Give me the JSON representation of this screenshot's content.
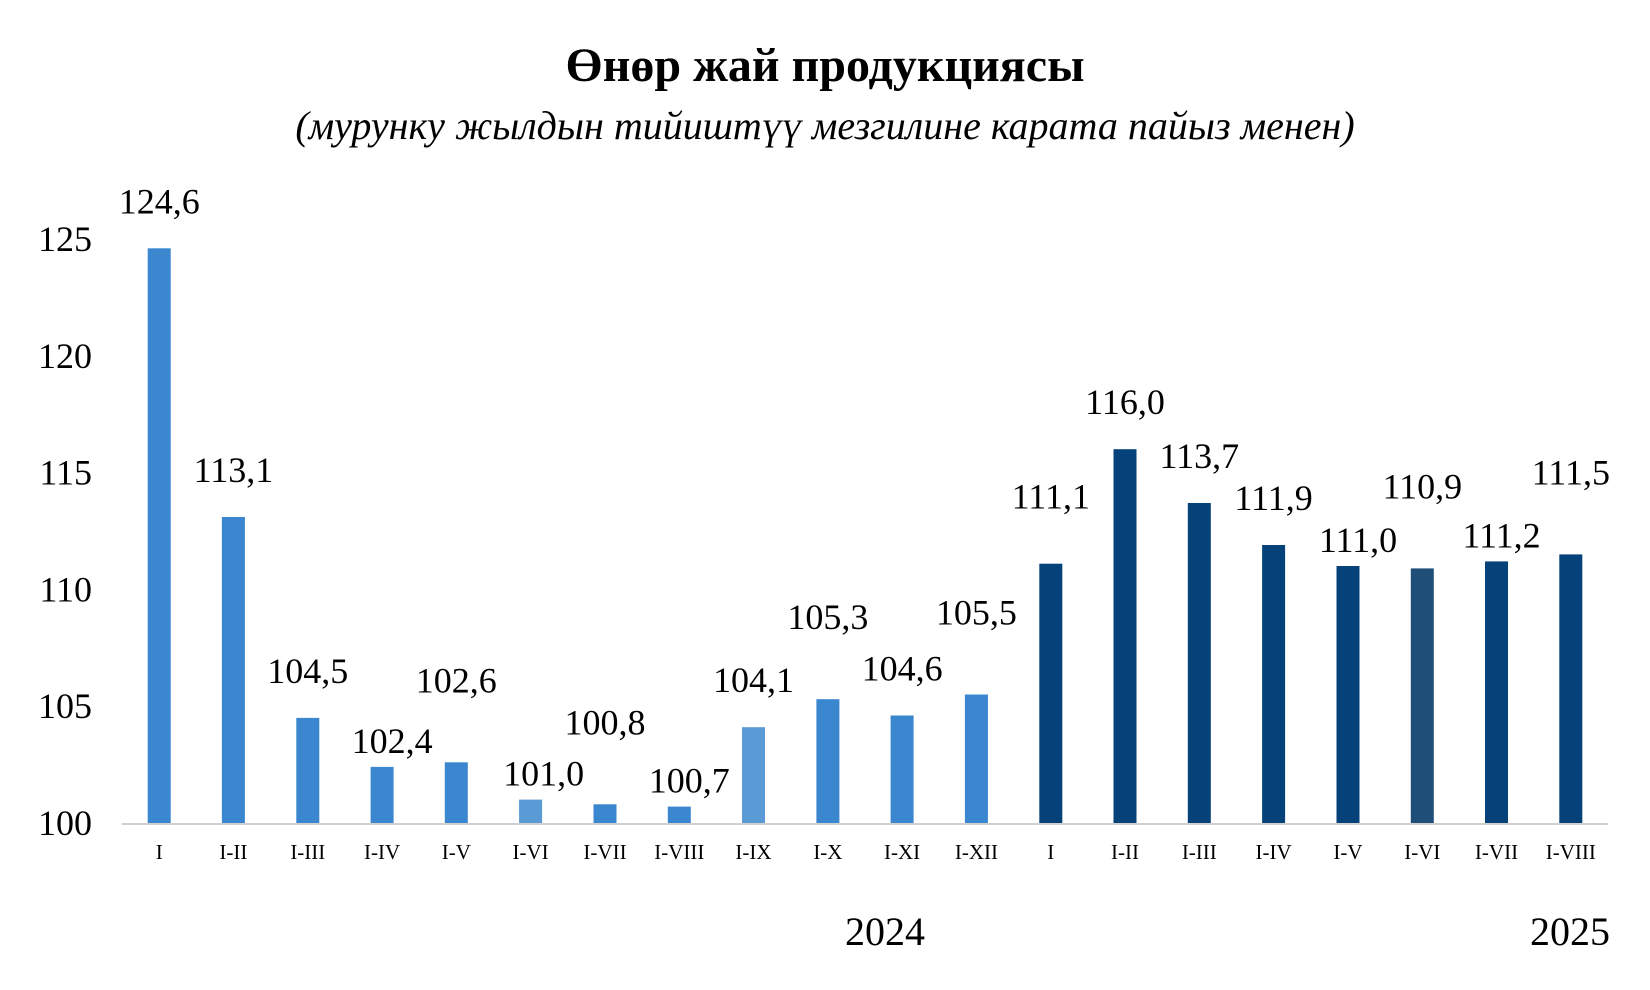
{
  "chart_data": {
    "type": "bar",
    "title": "Өнөр жай продукциясы",
    "subtitle": "(мурунку жылдын тийиштүү  мезгилине карата пайыз менен)",
    "categories": [
      "I",
      "I-II",
      "I-III",
      "I-IV",
      "I-V",
      "I-VI",
      "I-VII",
      "I-VIII",
      "I-IX",
      "I-X",
      "I-XI",
      "I-XII",
      "I",
      "I-II",
      "I-III",
      "I-IV",
      "I-V",
      "I-VI",
      "I-VII",
      "I-VIII"
    ],
    "values": [
      124.6,
      113.1,
      104.5,
      102.4,
      102.6,
      101.0,
      100.8,
      100.7,
      104.1,
      105.3,
      104.6,
      105.5,
      111.1,
      116.0,
      113.7,
      111.9,
      111.0,
      110.9,
      111.2,
      111.5
    ],
    "value_labels": [
      "124,6",
      "113,1",
      "104,5",
      "102,4",
      "102,6",
      "101,0",
      "100,8",
      "100,7",
      "104,1",
      "105,3",
      "104,6",
      "105,5",
      "111,1",
      "116,0",
      "113,7",
      "111,9",
      "111,0",
      "110,9",
      "111,2",
      "111,5"
    ],
    "bar_colors": [
      "#3a87d0",
      "#3a87d0",
      "#3a87d0",
      "#3a87d0",
      "#3a87d0",
      "#5b9bd5",
      "#3a87d0",
      "#3a87d0",
      "#5b9bd5",
      "#3a87d0",
      "#3a87d0",
      "#3a87d0",
      "#05427a",
      "#05427a",
      "#05427a",
      "#05427a",
      "#05427a",
      "#1f4e79",
      "#05427a",
      "#05427a"
    ],
    "groups": [
      {
        "label": "2024",
        "start": 0,
        "end": 11
      },
      {
        "label": "2025",
        "start": 12,
        "end": 19
      }
    ],
    "ylim": [
      100,
      125
    ],
    "yticks": [
      "100",
      "105",
      "110",
      "115",
      "120",
      "125"
    ],
    "grid": false,
    "legend": "none"
  }
}
